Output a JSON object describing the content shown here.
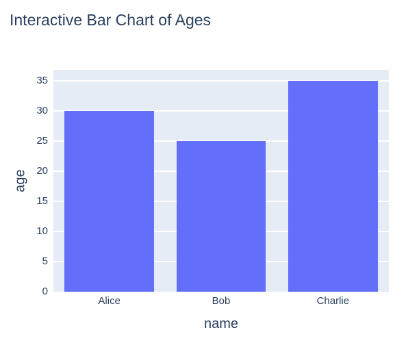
{
  "chart_data": {
    "type": "bar",
    "title": "Interactive Bar Chart of Ages",
    "categories": [
      "Alice",
      "Bob",
      "Charlie"
    ],
    "values": [
      30,
      25,
      35
    ],
    "xlabel": "name",
    "ylabel": "age",
    "ylim": [
      0,
      36.84
    ],
    "yticks": [
      0,
      5,
      10,
      15,
      20,
      25,
      30,
      35
    ],
    "grid": true,
    "legend": "none",
    "bar_width_fraction": 0.8,
    "colors": {
      "bar": "#636EFA",
      "plot_background": "#E5ECF6",
      "gridline": "#FFFFFF",
      "text": "#2A3F5F",
      "paper_background": "#FFFFFF"
    }
  }
}
